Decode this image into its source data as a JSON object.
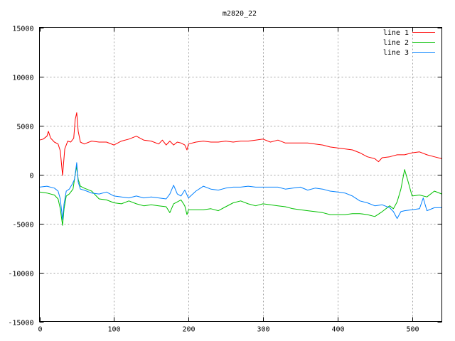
{
  "chart_data": {
    "type": "line",
    "title": "m2820_22",
    "xlabel": "",
    "ylabel": "",
    "xlim": [
      0,
      540
    ],
    "ylim": [
      -15000,
      15000
    ],
    "xticks": [
      0,
      100,
      200,
      300,
      400,
      500
    ],
    "yticks": [
      -15000,
      -10000,
      -5000,
      0,
      5000,
      10000,
      15000
    ],
    "grid": true,
    "legend_position": "top-right",
    "series": [
      {
        "name": "line 1",
        "color": "#ff0000",
        "points": [
          [
            0,
            3500
          ],
          [
            5,
            3600
          ],
          [
            10,
            3900
          ],
          [
            12,
            4400
          ],
          [
            15,
            3700
          ],
          [
            20,
            3300
          ],
          [
            25,
            3100
          ],
          [
            28,
            2400
          ],
          [
            31,
            -100
          ],
          [
            34,
            2600
          ],
          [
            38,
            3400
          ],
          [
            42,
            3300
          ],
          [
            46,
            3700
          ],
          [
            48,
            5600
          ],
          [
            50,
            6300
          ],
          [
            52,
            4400
          ],
          [
            55,
            3300
          ],
          [
            60,
            3100
          ],
          [
            70,
            3400
          ],
          [
            80,
            3300
          ],
          [
            90,
            3300
          ],
          [
            100,
            3000
          ],
          [
            110,
            3400
          ],
          [
            120,
            3600
          ],
          [
            130,
            3900
          ],
          [
            140,
            3500
          ],
          [
            150,
            3400
          ],
          [
            160,
            3100
          ],
          [
            165,
            3500
          ],
          [
            170,
            3000
          ],
          [
            175,
            3400
          ],
          [
            180,
            3000
          ],
          [
            185,
            3300
          ],
          [
            190,
            3200
          ],
          [
            195,
            3000
          ],
          [
            198,
            2500
          ],
          [
            200,
            3100
          ],
          [
            210,
            3300
          ],
          [
            220,
            3400
          ],
          [
            230,
            3300
          ],
          [
            240,
            3300
          ],
          [
            250,
            3400
          ],
          [
            260,
            3300
          ],
          [
            270,
            3400
          ],
          [
            280,
            3400
          ],
          [
            290,
            3500
          ],
          [
            300,
            3600
          ],
          [
            310,
            3300
          ],
          [
            320,
            3500
          ],
          [
            330,
            3200
          ],
          [
            340,
            3200
          ],
          [
            350,
            3200
          ],
          [
            360,
            3200
          ],
          [
            370,
            3100
          ],
          [
            380,
            3000
          ],
          [
            390,
            2800
          ],
          [
            400,
            2700
          ],
          [
            410,
            2600
          ],
          [
            420,
            2500
          ],
          [
            430,
            2200
          ],
          [
            440,
            1800
          ],
          [
            450,
            1600
          ],
          [
            455,
            1300
          ],
          [
            460,
            1700
          ],
          [
            470,
            1800
          ],
          [
            480,
            2000
          ],
          [
            490,
            2000
          ],
          [
            500,
            2200
          ],
          [
            510,
            2300
          ],
          [
            520,
            2000
          ],
          [
            530,
            1800
          ],
          [
            540,
            1600
          ]
        ]
      },
      {
        "name": "line 2",
        "color": "#00c000",
        "points": [
          [
            0,
            -1800
          ],
          [
            10,
            -1900
          ],
          [
            20,
            -2100
          ],
          [
            25,
            -2500
          ],
          [
            28,
            -3500
          ],
          [
            31,
            -5200
          ],
          [
            33,
            -3500
          ],
          [
            36,
            -2200
          ],
          [
            40,
            -2000
          ],
          [
            45,
            -1500
          ],
          [
            48,
            0
          ],
          [
            50,
            800
          ],
          [
            52,
            -500
          ],
          [
            55,
            -1200
          ],
          [
            60,
            -1400
          ],
          [
            70,
            -1700
          ],
          [
            80,
            -2500
          ],
          [
            90,
            -2600
          ],
          [
            100,
            -2900
          ],
          [
            110,
            -3000
          ],
          [
            120,
            -2700
          ],
          [
            130,
            -3000
          ],
          [
            140,
            -3200
          ],
          [
            150,
            -3100
          ],
          [
            160,
            -3200
          ],
          [
            170,
            -3300
          ],
          [
            175,
            -3900
          ],
          [
            180,
            -3000
          ],
          [
            190,
            -2600
          ],
          [
            195,
            -3200
          ],
          [
            198,
            -4100
          ],
          [
            200,
            -3600
          ],
          [
            210,
            -3600
          ],
          [
            220,
            -3600
          ],
          [
            230,
            -3500
          ],
          [
            240,
            -3700
          ],
          [
            250,
            -3300
          ],
          [
            260,
            -2900
          ],
          [
            270,
            -2700
          ],
          [
            280,
            -3000
          ],
          [
            290,
            -3200
          ],
          [
            300,
            -3000
          ],
          [
            310,
            -3100
          ],
          [
            320,
            -3200
          ],
          [
            330,
            -3300
          ],
          [
            340,
            -3500
          ],
          [
            350,
            -3600
          ],
          [
            360,
            -3700
          ],
          [
            370,
            -3800
          ],
          [
            380,
            -3900
          ],
          [
            390,
            -4100
          ],
          [
            400,
            -4100
          ],
          [
            410,
            -4100
          ],
          [
            420,
            -4000
          ],
          [
            430,
            -4000
          ],
          [
            440,
            -4100
          ],
          [
            450,
            -4300
          ],
          [
            460,
            -3800
          ],
          [
            470,
            -3200
          ],
          [
            475,
            -3500
          ],
          [
            480,
            -2800
          ],
          [
            485,
            -1500
          ],
          [
            490,
            500
          ],
          [
            495,
            -800
          ],
          [
            500,
            -2200
          ],
          [
            510,
            -2100
          ],
          [
            520,
            -2300
          ],
          [
            530,
            -1700
          ],
          [
            540,
            -2000
          ]
        ]
      },
      {
        "name": "line 3",
        "color": "#0080ff",
        "points": [
          [
            0,
            -1300
          ],
          [
            10,
            -1200
          ],
          [
            20,
            -1400
          ],
          [
            25,
            -1700
          ],
          [
            28,
            -2500
          ],
          [
            31,
            -4600
          ],
          [
            33,
            -3000
          ],
          [
            36,
            -1700
          ],
          [
            40,
            -1500
          ],
          [
            44,
            -1000
          ],
          [
            47,
            -500
          ],
          [
            50,
            1200
          ],
          [
            52,
            -800
          ],
          [
            55,
            -1500
          ],
          [
            60,
            -1600
          ],
          [
            70,
            -1900
          ],
          [
            80,
            -2000
          ],
          [
            90,
            -1800
          ],
          [
            100,
            -2200
          ],
          [
            110,
            -2300
          ],
          [
            120,
            -2400
          ],
          [
            130,
            -2200
          ],
          [
            140,
            -2400
          ],
          [
            150,
            -2300
          ],
          [
            160,
            -2400
          ],
          [
            170,
            -2500
          ],
          [
            175,
            -2000
          ],
          [
            180,
            -1100
          ],
          [
            185,
            -2000
          ],
          [
            190,
            -2200
          ],
          [
            195,
            -1600
          ],
          [
            200,
            -2400
          ],
          [
            210,
            -1700
          ],
          [
            220,
            -1200
          ],
          [
            230,
            -1500
          ],
          [
            240,
            -1600
          ],
          [
            250,
            -1400
          ],
          [
            260,
            -1300
          ],
          [
            270,
            -1300
          ],
          [
            280,
            -1200
          ],
          [
            290,
            -1300
          ],
          [
            300,
            -1300
          ],
          [
            310,
            -1300
          ],
          [
            320,
            -1300
          ],
          [
            330,
            -1500
          ],
          [
            340,
            -1400
          ],
          [
            350,
            -1300
          ],
          [
            360,
            -1600
          ],
          [
            370,
            -1400
          ],
          [
            380,
            -1500
          ],
          [
            390,
            -1700
          ],
          [
            400,
            -1800
          ],
          [
            410,
            -1900
          ],
          [
            420,
            -2200
          ],
          [
            430,
            -2700
          ],
          [
            440,
            -2900
          ],
          [
            450,
            -3200
          ],
          [
            460,
            -3100
          ],
          [
            470,
            -3400
          ],
          [
            475,
            -3800
          ],
          [
            480,
            -4500
          ],
          [
            485,
            -3800
          ],
          [
            490,
            -3700
          ],
          [
            500,
            -3600
          ],
          [
            510,
            -3500
          ],
          [
            515,
            -2400
          ],
          [
            520,
            -3700
          ],
          [
            530,
            -3400
          ],
          [
            540,
            -3400
          ]
        ]
      }
    ]
  }
}
